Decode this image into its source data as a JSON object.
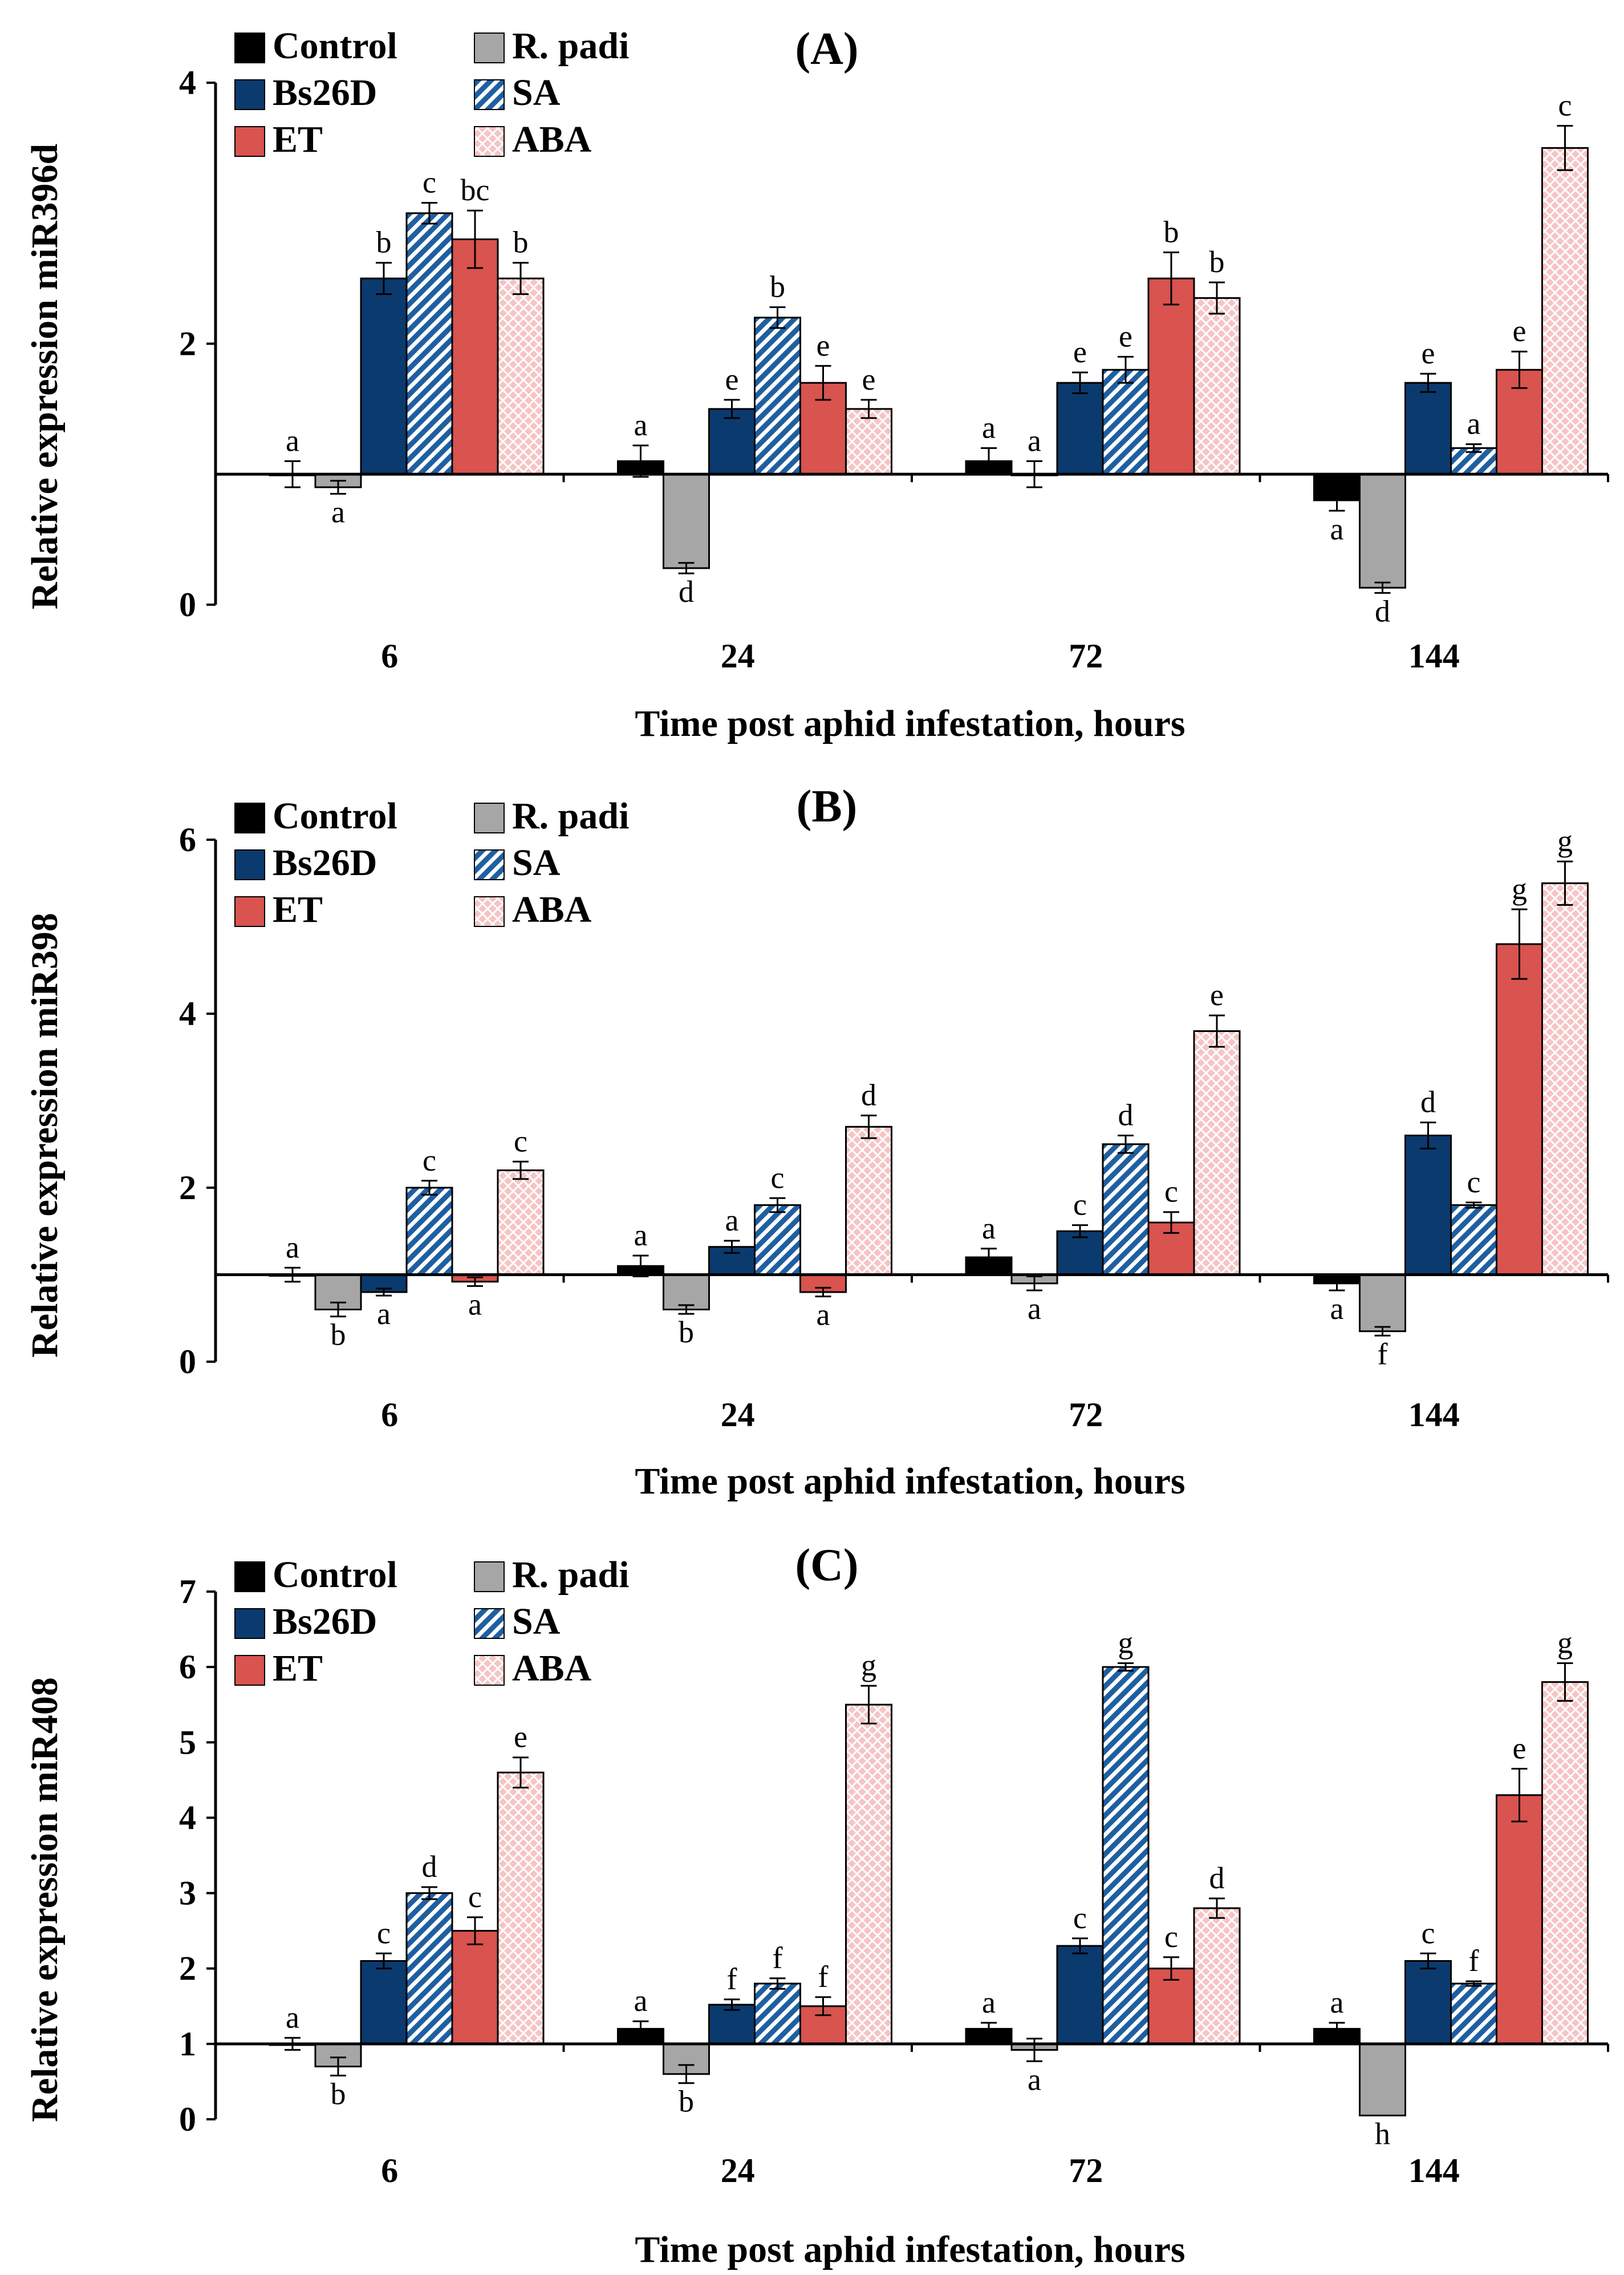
{
  "figure": {
    "legend": [
      {
        "name": "Control",
        "color": "#000000",
        "pattern": "solid"
      },
      {
        "name": "R. padi",
        "color": "#a6a6a6",
        "pattern": "solid"
      },
      {
        "name": "Bs26D",
        "color": "#0b3a6e",
        "pattern": "solid"
      },
      {
        "name": "SA",
        "color": "#9dc3e6",
        "pattern": "diagonal-stripes"
      },
      {
        "name": "ET",
        "color": "#d9534f",
        "pattern": "solid"
      },
      {
        "name": "ABA",
        "color": "#f4b6b6",
        "pattern": "crosshatch"
      }
    ]
  },
  "chart_data": [
    {
      "type": "bar",
      "title": "(A)",
      "xlabel": "Time post aphid infestation, hours",
      "ylabel": "Relative expression miR396d",
      "baseline": 1,
      "ylim": [
        0,
        4
      ],
      "yticks": [
        "0",
        "2",
        "4"
      ],
      "ytick_values": [
        0,
        2,
        4
      ],
      "categories": [
        "6",
        "24",
        "72",
        "144"
      ],
      "series": [
        {
          "name": "Control",
          "values": [
            1.0,
            1.1,
            1.1,
            0.8
          ],
          "errors": [
            0.1,
            0.12,
            0.1,
            0.08
          ],
          "labels": [
            "a",
            "a",
            "a",
            "a"
          ]
        },
        {
          "name": "R. padi",
          "values": [
            0.9,
            0.28,
            1.0,
            0.13
          ],
          "errors": [
            0.05,
            0.04,
            0.1,
            0.04
          ],
          "labels": [
            "a",
            "d",
            "a",
            "d"
          ]
        },
        {
          "name": "Bs26D",
          "values": [
            2.5,
            1.5,
            1.7,
            1.7
          ],
          "errors": [
            0.12,
            0.07,
            0.08,
            0.07
          ],
          "labels": [
            "b",
            "e",
            "e",
            "e"
          ]
        },
        {
          "name": "SA",
          "values": [
            3.0,
            2.2,
            1.8,
            1.2
          ],
          "errors": [
            0.08,
            0.08,
            0.1,
            0.03
          ],
          "labels": [
            "c",
            "b",
            "e",
            "a"
          ]
        },
        {
          "name": "ET",
          "values": [
            2.8,
            1.7,
            2.5,
            1.8
          ],
          "errors": [
            0.22,
            0.13,
            0.2,
            0.14
          ],
          "labels": [
            "bc",
            "e",
            "b",
            "e"
          ]
        },
        {
          "name": "ABA",
          "values": [
            2.5,
            1.5,
            2.35,
            3.5
          ],
          "errors": [
            0.12,
            0.07,
            0.12,
            0.17
          ],
          "labels": [
            "b",
            "e",
            "b",
            "c"
          ]
        }
      ]
    },
    {
      "type": "bar",
      "title": "(B)",
      "xlabel": "Time post aphid infestation, hours",
      "ylabel": "Relative expression miR398",
      "baseline": 1,
      "ylim": [
        0,
        6
      ],
      "yticks": [
        "0",
        "2",
        "4",
        "6"
      ],
      "ytick_values": [
        0,
        2,
        4,
        6
      ],
      "categories": [
        "6",
        "24",
        "72",
        "144"
      ],
      "series": [
        {
          "name": "Control",
          "values": [
            1.0,
            1.1,
            1.2,
            0.9
          ],
          "errors": [
            0.08,
            0.12,
            0.1,
            0.08
          ],
          "labels": [
            "a",
            "a",
            "a",
            "a"
          ]
        },
        {
          "name": "R. padi",
          "values": [
            0.6,
            0.6,
            0.9,
            0.35
          ],
          "errors": [
            0.08,
            0.05,
            0.08,
            0.05
          ],
          "labels": [
            "b",
            "b",
            "a",
            "f"
          ]
        },
        {
          "name": "Bs26D",
          "values": [
            0.8,
            1.32,
            1.5,
            2.6
          ],
          "errors": [
            0.04,
            0.07,
            0.07,
            0.15
          ],
          "labels": [
            "a",
            "a",
            "c",
            "d"
          ]
        },
        {
          "name": "SA",
          "values": [
            2.0,
            1.8,
            2.5,
            1.8
          ],
          "errors": [
            0.08,
            0.08,
            0.1,
            0.03
          ],
          "labels": [
            "c",
            "c",
            "d",
            "c"
          ]
        },
        {
          "name": "ET",
          "values": [
            0.92,
            0.8,
            1.6,
            4.8
          ],
          "errors": [
            0.05,
            0.05,
            0.12,
            0.4
          ],
          "labels": [
            "a",
            "a",
            "c",
            "g"
          ]
        },
        {
          "name": "ABA",
          "values": [
            2.2,
            2.7,
            3.8,
            5.5
          ],
          "errors": [
            0.1,
            0.13,
            0.18,
            0.25
          ],
          "labels": [
            "c",
            "d",
            "e",
            "g"
          ]
        }
      ]
    },
    {
      "type": "bar",
      "title": "(C)",
      "xlabel": "Time post aphid infestation, hours",
      "ylabel": "Relative expression miR408",
      "baseline": 1,
      "ylim": [
        0,
        7
      ],
      "yticks": [
        "0",
        "1",
        "2",
        "3",
        "4",
        "5",
        "6",
        "7"
      ],
      "ytick_values": [
        0,
        1,
        2,
        3,
        4,
        5,
        6,
        7
      ],
      "categories": [
        "6",
        "24",
        "72",
        "144"
      ],
      "series": [
        {
          "name": "Control",
          "values": [
            1.0,
            1.2,
            1.2,
            1.2
          ],
          "errors": [
            0.08,
            0.1,
            0.08,
            0.08
          ],
          "labels": [
            "a",
            "a",
            "a",
            "a"
          ]
        },
        {
          "name": "R. padi",
          "values": [
            0.7,
            0.6,
            0.92,
            0.05
          ],
          "errors": [
            0.12,
            0.12,
            0.15,
            0.0
          ],
          "labels": [
            "b",
            "b",
            "a",
            "h"
          ]
        },
        {
          "name": "Bs26D",
          "values": [
            2.1,
            1.52,
            2.3,
            2.1
          ],
          "errors": [
            0.1,
            0.07,
            0.1,
            0.1
          ],
          "labels": [
            "c",
            "f",
            "c",
            "c"
          ]
        },
        {
          "name": "SA",
          "values": [
            3.0,
            1.8,
            6.0,
            1.8
          ],
          "errors": [
            0.08,
            0.07,
            0.05,
            0.03
          ],
          "labels": [
            "d",
            "f",
            "g",
            "f"
          ]
        },
        {
          "name": "ET",
          "values": [
            2.5,
            1.5,
            2.0,
            4.3
          ],
          "errors": [
            0.18,
            0.12,
            0.15,
            0.35
          ],
          "labels": [
            "c",
            "f",
            "c",
            "e"
          ]
        },
        {
          "name": "ABA",
          "values": [
            4.6,
            5.5,
            2.8,
            5.8
          ],
          "errors": [
            0.2,
            0.25,
            0.13,
            0.25
          ],
          "labels": [
            "e",
            "g",
            "d",
            "g"
          ]
        }
      ]
    }
  ]
}
